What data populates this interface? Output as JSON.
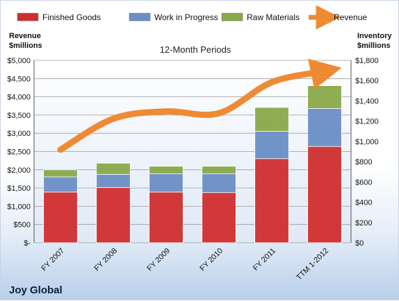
{
  "chart_data": {
    "type": "bar",
    "stacked": true,
    "subtitle": "12-Month Periods",
    "brand": "Joy Global",
    "categories": [
      "FY 2007",
      "FY 2008",
      "FY 2009",
      "FY 2010",
      "FY 2011",
      "TTM 1-2012"
    ],
    "series": [
      {
        "name": "Finished Goods",
        "axis": "right",
        "color": "#d12f2f",
        "values": [
          500,
          545,
          500,
          495,
          830,
          950
        ]
      },
      {
        "name": "Work in Progress",
        "axis": "right",
        "color": "#6b8fc6",
        "values": [
          150,
          130,
          180,
          185,
          270,
          375
        ]
      },
      {
        "name": "Raw Materials",
        "axis": "right",
        "color": "#8aa94a",
        "values": [
          70,
          110,
          75,
          75,
          235,
          225
        ]
      },
      {
        "name": "Revenue",
        "type": "line",
        "axis": "left",
        "color": "#ef8a34",
        "values": [
          2550,
          3400,
          3600,
          3550,
          4400,
          4700
        ]
      }
    ],
    "y_left": {
      "label_line1": "Revenue",
      "label_line2": "$millions",
      "ylim": [
        0,
        5000
      ],
      "ticks": [
        "$-",
        "$500",
        "$1,000",
        "$1,500",
        "$2,000",
        "$2,500",
        "$3,000",
        "$3,500",
        "$4,000",
        "$4,500",
        "$5,000"
      ]
    },
    "y_right": {
      "label_line1": "Inventory",
      "label_line2": "$millions",
      "ylim": [
        0,
        1800
      ],
      "ticks": [
        "$0",
        "$200",
        "$400",
        "$600",
        "$800",
        "$1,000",
        "$1,200",
        "$1,400",
        "$1,600",
        "$1,800"
      ]
    },
    "grid": true,
    "legend_position": "top"
  }
}
